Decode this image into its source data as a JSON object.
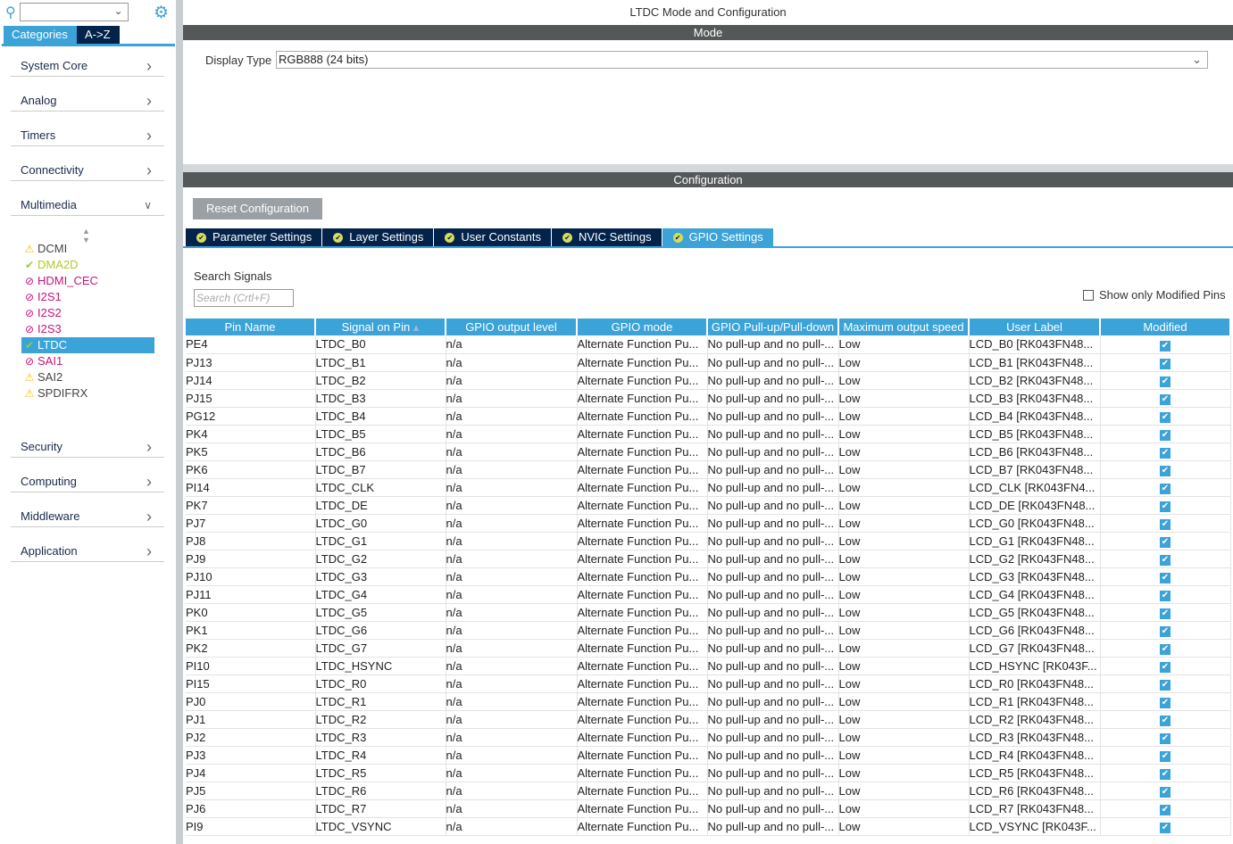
{
  "sidebar": {
    "search_value": "",
    "tabs": [
      "Categories",
      "A->Z"
    ],
    "categories": [
      {
        "label": "System Core",
        "expanded": false
      },
      {
        "label": "Analog",
        "expanded": false
      },
      {
        "label": "Timers",
        "expanded": false
      },
      {
        "label": "Connectivity",
        "expanded": false
      },
      {
        "label": "Multimedia",
        "expanded": true
      }
    ],
    "multimedia_items": [
      {
        "label": "DCMI",
        "status": "warning",
        "color": "#444444"
      },
      {
        "label": "DMA2D",
        "status": "ok",
        "color": "#b5c82a"
      },
      {
        "label": "HDMI_CEC",
        "status": "disabled",
        "color": "#c8137a"
      },
      {
        "label": "I2S1",
        "status": "disabled",
        "color": "#c8137a"
      },
      {
        "label": "I2S2",
        "status": "disabled",
        "color": "#c8137a"
      },
      {
        "label": "I2S3",
        "status": "disabled",
        "color": "#c8137a"
      },
      {
        "label": "LTDC",
        "status": "ok",
        "color": "#ffffff",
        "selected": true
      },
      {
        "label": "SAI1",
        "status": "disabled",
        "color": "#c8137a"
      },
      {
        "label": "SAI2",
        "status": "warning",
        "color": "#444444"
      },
      {
        "label": "SPDIFRX",
        "status": "warning",
        "color": "#444444"
      }
    ],
    "more_categories": [
      {
        "label": "Security"
      },
      {
        "label": "Computing"
      },
      {
        "label": "Middleware"
      },
      {
        "label": "Application"
      }
    ]
  },
  "main": {
    "title": "LTDC Mode and Configuration",
    "mode_bar": "Mode",
    "display_type_label": "Display Type",
    "display_type_value": "RGB888 (24 bits)",
    "config_bar": "Configuration",
    "reset_button": "Reset Configuration",
    "tabs": [
      {
        "label": "Parameter Settings"
      },
      {
        "label": "Layer Settings"
      },
      {
        "label": "User Constants"
      },
      {
        "label": "NVIC Settings"
      },
      {
        "label": "GPIO Settings",
        "active": true
      }
    ],
    "search_label": "Search Signals",
    "search_placeholder": "Search (Crtl+F)",
    "show_modified_label": "Show only Modified Pins",
    "show_modified_checked": false,
    "columns": [
      "Pin Name",
      "Signal on Pin",
      "GPIO output level",
      "GPIO mode",
      "GPIO Pull-up/Pull-down",
      "Maximum output speed",
      "User Label",
      "Modified"
    ],
    "sort_column": "Signal on Pin",
    "rows": [
      [
        "PE4",
        "LTDC_B0",
        "LCD_B0 [RK043FN48..."
      ],
      [
        "PJ13",
        "LTDC_B1",
        "LCD_B1 [RK043FN48..."
      ],
      [
        "PJ14",
        "LTDC_B2",
        "LCD_B2 [RK043FN48..."
      ],
      [
        "PJ15",
        "LTDC_B3",
        "LCD_B3 [RK043FN48..."
      ],
      [
        "PG12",
        "LTDC_B4",
        "LCD_B4 [RK043FN48..."
      ],
      [
        "PK4",
        "LTDC_B5",
        "LCD_B5 [RK043FN48..."
      ],
      [
        "PK5",
        "LTDC_B6",
        "LCD_B6 [RK043FN48..."
      ],
      [
        "PK6",
        "LTDC_B7",
        "LCD_B7 [RK043FN48..."
      ],
      [
        "PI14",
        "LTDC_CLK",
        "LCD_CLK [RK043FN4..."
      ],
      [
        "PK7",
        "LTDC_DE",
        "LCD_DE [RK043FN48..."
      ],
      [
        "PJ7",
        "LTDC_G0",
        "LCD_G0 [RK043FN48..."
      ],
      [
        "PJ8",
        "LTDC_G1",
        "LCD_G1 [RK043FN48..."
      ],
      [
        "PJ9",
        "LTDC_G2",
        "LCD_G2 [RK043FN48..."
      ],
      [
        "PJ10",
        "LTDC_G3",
        "LCD_G3 [RK043FN48..."
      ],
      [
        "PJ11",
        "LTDC_G4",
        "LCD_G4 [RK043FN48..."
      ],
      [
        "PK0",
        "LTDC_G5",
        "LCD_G5 [RK043FN48..."
      ],
      [
        "PK1",
        "LTDC_G6",
        "LCD_G6 [RK043FN48..."
      ],
      [
        "PK2",
        "LTDC_G7",
        "LCD_G7 [RK043FN48..."
      ],
      [
        "PI10",
        "LTDC_HSYNC",
        "LCD_HSYNC [RK043F..."
      ],
      [
        "PI15",
        "LTDC_R0",
        "LCD_R0 [RK043FN48..."
      ],
      [
        "PJ0",
        "LTDC_R1",
        "LCD_R1 [RK043FN48..."
      ],
      [
        "PJ1",
        "LTDC_R2",
        "LCD_R2 [RK043FN48..."
      ],
      [
        "PJ2",
        "LTDC_R3",
        "LCD_R3 [RK043FN48..."
      ],
      [
        "PJ3",
        "LTDC_R4",
        "LCD_R4 [RK043FN48..."
      ],
      [
        "PJ4",
        "LTDC_R5",
        "LCD_R5 [RK043FN48..."
      ],
      [
        "PJ5",
        "LTDC_R6",
        "LCD_R6 [RK043FN48..."
      ],
      [
        "PJ6",
        "LTDC_R7",
        "LCD_R7 [RK043FN48..."
      ],
      [
        "PI9",
        "LTDC_VSYNC",
        "LCD_VSYNC [RK043F..."
      ]
    ],
    "common": {
      "output_level": "n/a",
      "mode": "Alternate Function Pu...",
      "pull": "No pull-up and no pull-...",
      "speed": "Low",
      "modified": true
    }
  },
  "colors": {
    "accent": "#3ba3d8",
    "navy": "#03234b",
    "bar": "#545859"
  }
}
